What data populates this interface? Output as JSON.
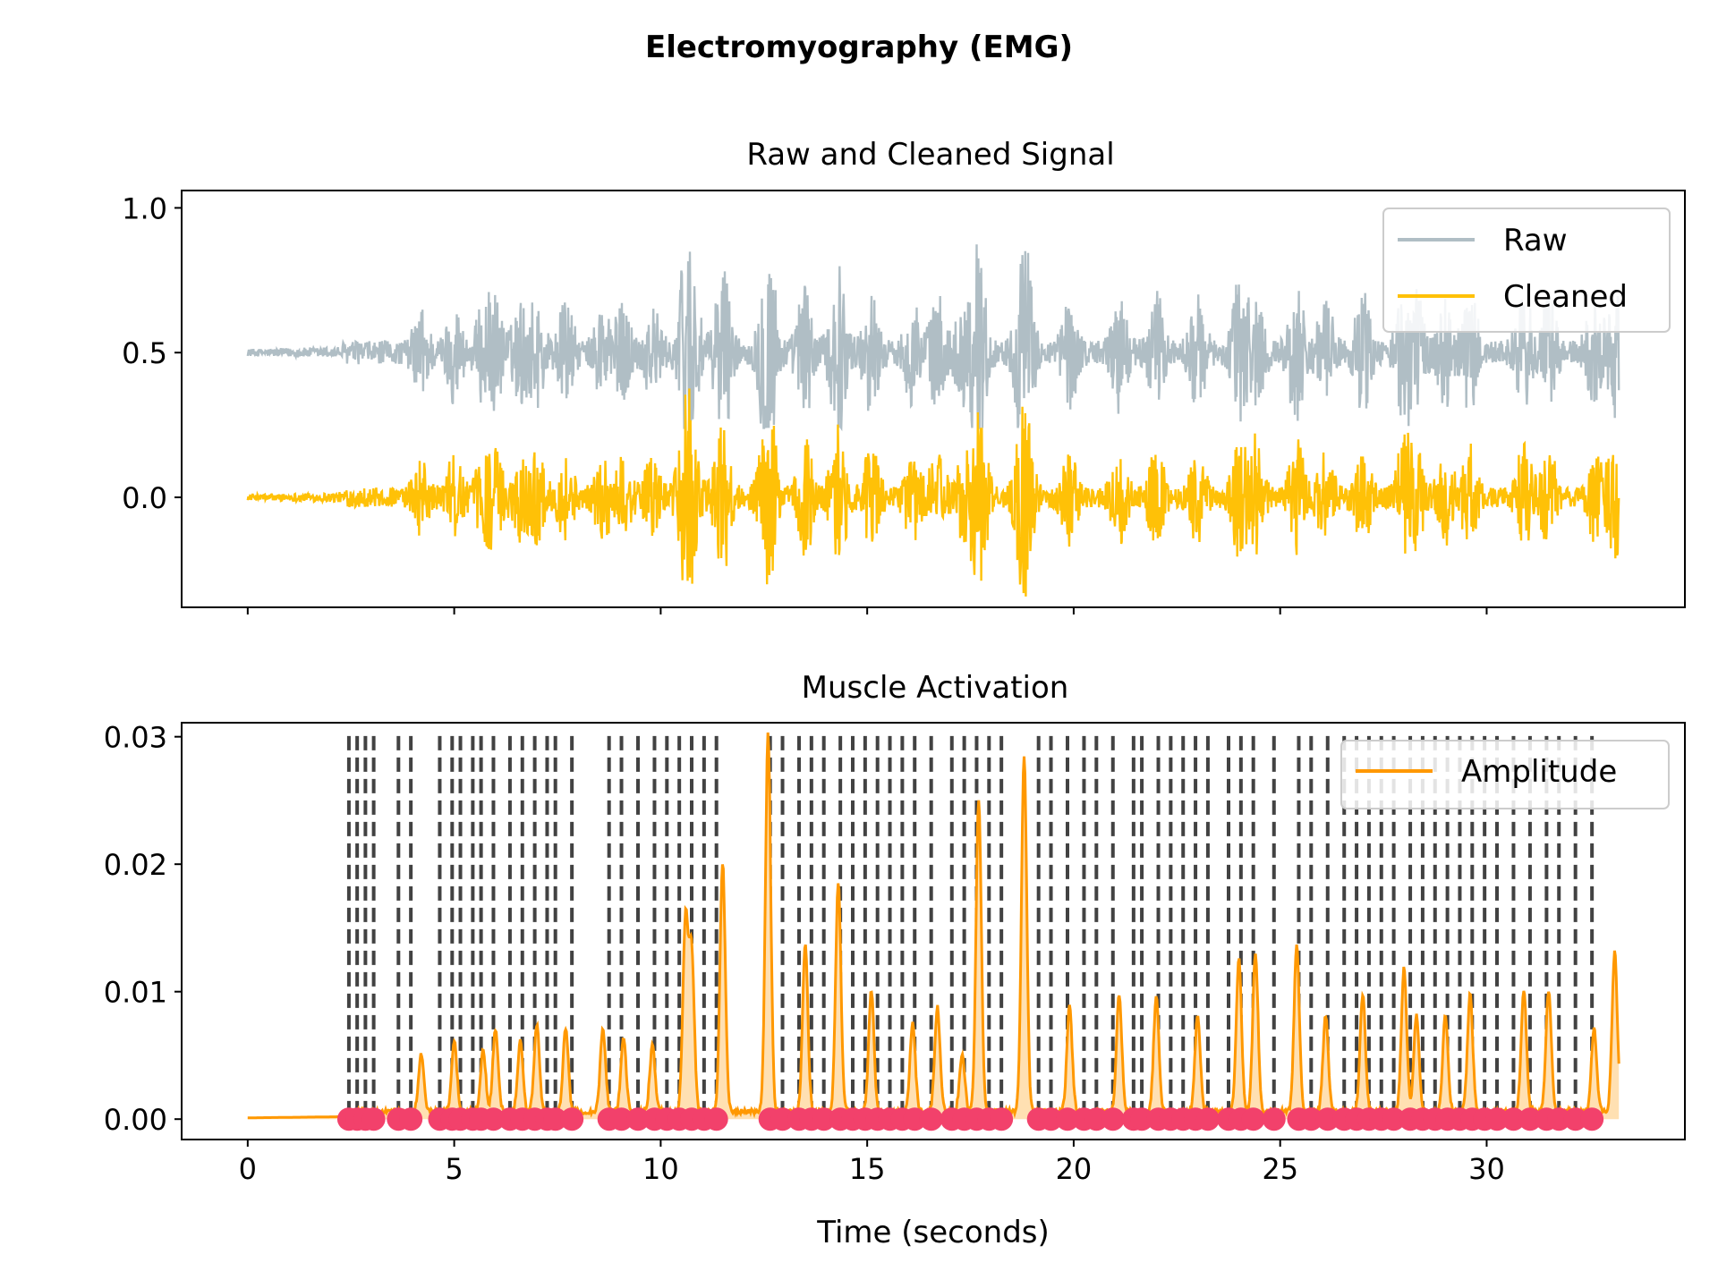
{
  "figure": {
    "title": "Electromyography (EMG)"
  },
  "colors": {
    "raw": "#B0BEC5",
    "cleaned": "#FFC107",
    "amplitude": "#FF9800",
    "amplitude_fill": "#FFE0B2",
    "activation_lines": "#424242",
    "onsets": "#F2416B"
  },
  "chart_data": [
    {
      "type": "line",
      "title": "Raw and Cleaned Signal",
      "xlabel": "",
      "ylabel": "",
      "xlim": [
        -1.6,
        34.8
      ],
      "ylim": [
        -0.38,
        1.06
      ],
      "yticks": [
        0.0,
        0.5,
        1.0
      ],
      "ytick_labels": [
        "0.0",
        "0.5",
        "1.0"
      ],
      "xticks": [
        0,
        5,
        10,
        15,
        20,
        25,
        30
      ],
      "xtick_labels_visible": false,
      "duration": 33.2,
      "grid": false,
      "legend": {
        "placement": "top-right",
        "entries": [
          "Raw",
          "Cleaned"
        ]
      },
      "series": [
        {
          "name": "Raw",
          "baseline": 0.5,
          "peak_max": 1.0,
          "trough_min": 0.24
        },
        {
          "name": "Cleaned",
          "baseline": 0.0,
          "peak_max": 0.44,
          "trough_min": -0.36
        }
      ]
    },
    {
      "type": "line",
      "title": "Muscle Activation",
      "xlabel": "Time (seconds)",
      "ylabel": "",
      "xlim": [
        -1.6,
        34.8
      ],
      "ylim": [
        -0.0016,
        0.0311
      ],
      "yticks": [
        0.0,
        0.01,
        0.02,
        0.03
      ],
      "ytick_labels": [
        "0.00",
        "0.01",
        "0.02",
        "0.03"
      ],
      "xticks": [
        0,
        5,
        10,
        15,
        20,
        25,
        30
      ],
      "xtick_labels": [
        "0",
        "5",
        "10",
        "15",
        "20",
        "25",
        "30"
      ],
      "grid": false,
      "legend": {
        "placement": "top-right",
        "entries": [
          "Amplitude"
        ]
      },
      "series": [
        {
          "name": "Amplitude",
          "peaks": [
            [
              4.2,
              0.0045
            ],
            [
              5.0,
              0.0055
            ],
            [
              5.7,
              0.0048
            ],
            [
              6.0,
              0.0065
            ],
            [
              6.6,
              0.0055
            ],
            [
              7.0,
              0.0068
            ],
            [
              7.7,
              0.0065
            ],
            [
              8.6,
              0.0065
            ],
            [
              9.1,
              0.0058
            ],
            [
              9.8,
              0.0052
            ],
            [
              10.6,
              0.015
            ],
            [
              10.75,
              0.0125
            ],
            [
              11.5,
              0.0195
            ],
            [
              12.6,
              0.0297
            ],
            [
              13.5,
              0.013
            ],
            [
              14.3,
              0.018
            ],
            [
              15.1,
              0.0095
            ],
            [
              16.1,
              0.007
            ],
            [
              16.7,
              0.0082
            ],
            [
              17.3,
              0.0045
            ],
            [
              17.7,
              0.0245
            ],
            [
              18.8,
              0.028
            ],
            [
              19.9,
              0.0082
            ],
            [
              21.1,
              0.0092
            ],
            [
              22.0,
              0.009
            ],
            [
              23.0,
              0.0075
            ],
            [
              24.0,
              0.012
            ],
            [
              24.4,
              0.0125
            ],
            [
              25.4,
              0.013
            ],
            [
              26.1,
              0.0075
            ],
            [
              27.0,
              0.0092
            ],
            [
              28.0,
              0.0113
            ],
            [
              28.3,
              0.0075
            ],
            [
              29.0,
              0.0075
            ],
            [
              29.6,
              0.0092
            ],
            [
              30.9,
              0.0095
            ],
            [
              31.5,
              0.0095
            ],
            [
              32.6,
              0.0065
            ],
            [
              33.1,
              0.0125
            ]
          ]
        }
      ],
      "activation_lines": [
        2.45,
        2.65,
        2.85,
        3.05,
        3.65,
        3.95,
        4.65,
        4.95,
        5.15,
        5.45,
        5.65,
        5.95,
        6.35,
        6.65,
        6.95,
        7.25,
        7.45,
        7.85,
        8.75,
        9.05,
        9.45,
        9.85,
        10.15,
        10.45,
        10.75,
        11.05,
        11.35,
        12.65,
        12.95,
        13.35,
        13.65,
        13.95,
        14.35,
        14.65,
        14.95,
        15.25,
        15.55,
        15.85,
        16.15,
        16.55,
        17.05,
        17.35,
        17.65,
        17.95,
        18.25,
        19.15,
        19.45,
        19.85,
        20.25,
        20.55,
        20.95,
        21.45,
        21.65,
        22.05,
        22.35,
        22.65,
        22.95,
        23.25,
        23.75,
        24.05,
        24.35,
        24.85,
        25.45,
        25.75,
        26.15,
        26.55,
        26.85,
        27.15,
        27.45,
        27.75,
        28.15,
        28.45,
        28.75,
        29.05,
        29.35,
        29.65,
        29.95,
        30.25,
        30.65,
        31.05,
        31.45,
        31.75,
        32.15,
        32.55
      ],
      "onsets": [
        2.45,
        2.65,
        2.85,
        3.05,
        3.65,
        3.95,
        4.65,
        4.95,
        5.15,
        5.45,
        5.65,
        5.95,
        6.35,
        6.65,
        6.95,
        7.25,
        7.45,
        7.85,
        8.75,
        9.05,
        9.45,
        9.85,
        10.15,
        10.45,
        10.75,
        11.05,
        11.35,
        12.65,
        12.95,
        13.35,
        13.65,
        13.95,
        14.35,
        14.65,
        14.95,
        15.25,
        15.55,
        15.85,
        16.15,
        16.55,
        17.05,
        17.35,
        17.65,
        17.95,
        18.25,
        19.15,
        19.45,
        19.85,
        20.25,
        20.55,
        20.95,
        21.45,
        21.65,
        22.05,
        22.35,
        22.65,
        22.95,
        23.25,
        23.75,
        24.05,
        24.35,
        24.85,
        25.45,
        25.75,
        26.15,
        26.55,
        26.85,
        27.15,
        27.45,
        27.75,
        28.15,
        28.45,
        28.75,
        29.05,
        29.35,
        29.65,
        29.95,
        30.25,
        30.65,
        31.05,
        31.45,
        31.75,
        32.15,
        32.55
      ]
    }
  ]
}
